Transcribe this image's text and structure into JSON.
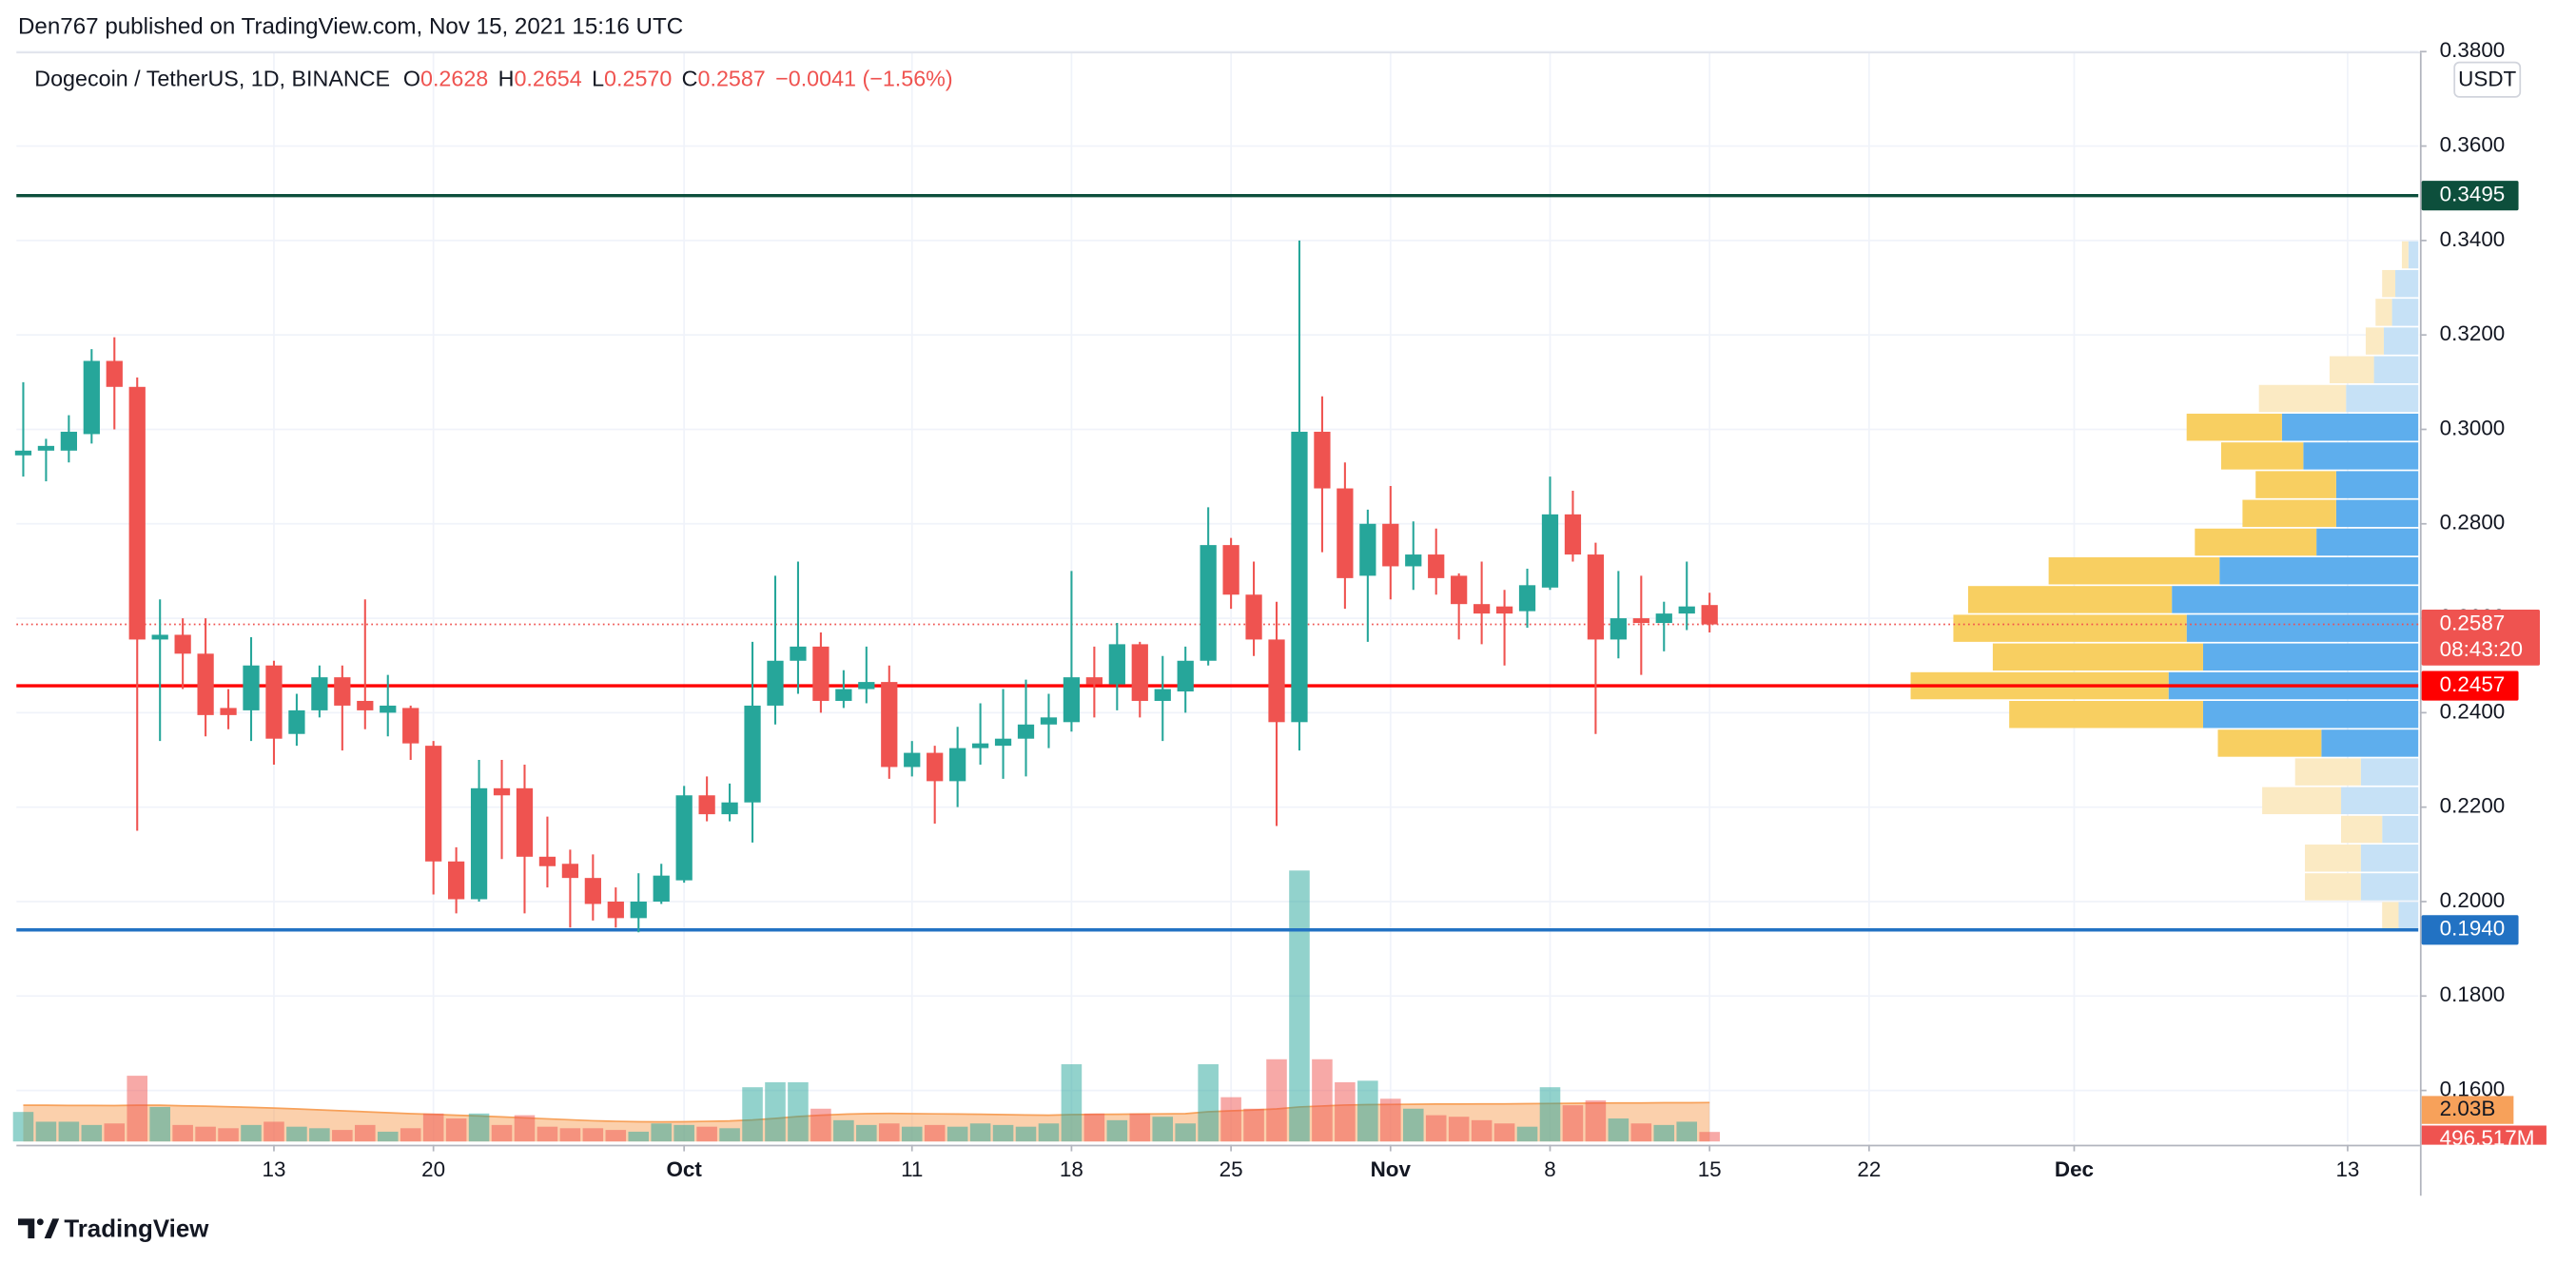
{
  "chart_data": {
    "type": "candlestick",
    "published": "Den767 published on TradingView.com, Nov 15, 2021 15:16 UTC",
    "legend": {
      "symbol": "Dogecoin / TetherUS, 1D, BINANCE",
      "ohlc": [
        {
          "key": "O",
          "value": "0.2628"
        },
        {
          "key": "H",
          "value": "0.2654"
        },
        {
          "key": "L",
          "value": "0.2570"
        },
        {
          "key": "C",
          "value": "0.2587"
        }
      ],
      "change": "−0.0041 (−1.56%)"
    },
    "currency": "USDT",
    "brand": "TradingView",
    "up_color": "#26a69a",
    "down_color": "#ef5350",
    "open": [
      0.2945,
      0.2955,
      0.2955,
      0.299,
      0.3145,
      0.309,
      0.2555,
      0.2565,
      0.2525,
      0.241,
      0.2405,
      0.25,
      0.2355,
      0.2405,
      0.2475,
      0.2425,
      0.24,
      0.241,
      0.233,
      0.2085,
      0.2005,
      0.224,
      0.224,
      0.2095,
      0.208,
      0.205,
      0.2,
      0.1965,
      0.2,
      0.2045,
      0.2225,
      0.2185,
      0.221,
      0.2415,
      0.251,
      0.254,
      0.2425,
      0.245,
      0.2465,
      0.2285,
      0.2315,
      0.2255,
      0.2325,
      0.233,
      0.2345,
      0.2375,
      0.238,
      0.2475,
      0.246,
      0.2545,
      0.2425,
      0.2445,
      0.251,
      0.2755,
      0.265,
      0.2555,
      0.238,
      0.2995,
      0.2875,
      0.269,
      0.28,
      0.271,
      0.2735,
      0.269,
      0.263,
      0.2625,
      0.2615,
      0.2665,
      0.282,
      0.2735,
      0.2555,
      0.26,
      0.259,
      0.261,
      0.2628
    ],
    "high": [
      0.31,
      0.298,
      0.303,
      0.317,
      0.3195,
      0.311,
      0.264,
      0.26,
      0.26,
      0.245,
      0.256,
      0.251,
      0.244,
      0.25,
      0.25,
      0.264,
      0.248,
      0.2415,
      0.234,
      0.2115,
      0.23,
      0.23,
      0.229,
      0.218,
      0.211,
      0.21,
      0.203,
      0.206,
      0.208,
      0.2245,
      0.2265,
      0.225,
      0.255,
      0.269,
      0.272,
      0.257,
      0.249,
      0.254,
      0.25,
      0.234,
      0.233,
      0.237,
      0.242,
      0.245,
      0.247,
      0.244,
      0.27,
      0.254,
      0.259,
      0.255,
      0.252,
      0.254,
      0.2835,
      0.277,
      0.272,
      0.2635,
      0.34,
      0.307,
      0.293,
      0.283,
      0.288,
      0.2805,
      0.279,
      0.2695,
      0.272,
      0.266,
      0.2705,
      0.29,
      0.287,
      0.276,
      0.27,
      0.269,
      0.2635,
      0.272,
      0.2654
    ],
    "low": [
      0.29,
      0.289,
      0.293,
      0.297,
      0.3,
      0.215,
      0.234,
      0.245,
      0.235,
      0.2365,
      0.234,
      0.229,
      0.233,
      0.239,
      0.232,
      0.2365,
      0.235,
      0.23,
      0.2015,
      0.1975,
      0.2,
      0.209,
      0.1975,
      0.203,
      0.1945,
      0.196,
      0.1945,
      0.1935,
      0.1995,
      0.204,
      0.217,
      0.217,
      0.2125,
      0.2375,
      0.244,
      0.24,
      0.241,
      0.242,
      0.226,
      0.2265,
      0.2165,
      0.22,
      0.229,
      0.226,
      0.2265,
      0.2325,
      0.236,
      0.239,
      0.2405,
      0.239,
      0.234,
      0.24,
      0.25,
      0.262,
      0.252,
      0.216,
      0.232,
      0.274,
      0.262,
      0.255,
      0.264,
      0.266,
      0.265,
      0.2555,
      0.2545,
      0.25,
      0.258,
      0.266,
      0.272,
      0.2355,
      0.2515,
      0.248,
      0.253,
      0.2575,
      0.257
    ],
    "close": [
      0.2955,
      0.2965,
      0.2995,
      0.3145,
      0.309,
      0.2555,
      0.2565,
      0.2525,
      0.2395,
      0.2395,
      0.25,
      0.2345,
      0.2405,
      0.2475,
      0.2415,
      0.2405,
      0.2415,
      0.2335,
      0.2085,
      0.2005,
      0.224,
      0.2225,
      0.2095,
      0.2075,
      0.205,
      0.1995,
      0.1965,
      0.2,
      0.2055,
      0.2225,
      0.2185,
      0.221,
      0.2415,
      0.251,
      0.254,
      0.2425,
      0.245,
      0.2465,
      0.2285,
      0.2315,
      0.2255,
      0.2325,
      0.2335,
      0.2345,
      0.2375,
      0.239,
      0.2475,
      0.246,
      0.2545,
      0.2425,
      0.245,
      0.251,
      0.2755,
      0.265,
      0.2555,
      0.238,
      0.2995,
      0.2875,
      0.2685,
      0.28,
      0.271,
      0.2735,
      0.2685,
      0.263,
      0.261,
      0.261,
      0.267,
      0.282,
      0.2735,
      0.2555,
      0.26,
      0.259,
      0.261,
      0.2625,
      0.2587
    ],
    "volume": {
      "values": [
        1540000000,
        1030000000,
        1030000000,
        860000000,
        940000000,
        3430000000,
        1800000000,
        860000000,
        770000000,
        690000000,
        860000000,
        1030000000,
        770000000,
        690000000,
        600000000,
        860000000,
        510000000,
        690000000,
        1460000000,
        1200000000,
        1460000000,
        860000000,
        1370000000,
        770000000,
        690000000,
        690000000,
        600000000,
        510000000,
        940000000,
        860000000,
        770000000,
        690000000,
        2830000000,
        3090000000,
        3090000000,
        1710000000,
        1110000000,
        860000000,
        940000000,
        770000000,
        860000000,
        770000000,
        940000000,
        860000000,
        770000000,
        940000000,
        4030000000,
        1460000000,
        1110000000,
        1460000000,
        1290000000,
        940000000,
        4030000000,
        2310000000,
        1710000000,
        4290000000,
        14140000000,
        4290000000,
        3090000000,
        3170000000,
        2230000000,
        1710000000,
        1370000000,
        1290000000,
        1110000000,
        940000000,
        770000000,
        2830000000,
        1890000000,
        2140000000,
        1200000000,
        940000000,
        860000000,
        1030000000,
        496517000
      ],
      "label": "496.517M",
      "ylim": [
        0,
        14400000000
      ],
      "up_color": "#26a69a",
      "down_color": "#ef5350",
      "ma": {
        "values": [
          1890000000,
          1890000000,
          1880000000,
          1880000000,
          1870000000,
          1890000000,
          1890000000,
          1860000000,
          1840000000,
          1810000000,
          1780000000,
          1740000000,
          1700000000,
          1650000000,
          1600000000,
          1550000000,
          1500000000,
          1450000000,
          1410000000,
          1370000000,
          1330000000,
          1280000000,
          1230000000,
          1180000000,
          1130000000,
          1080000000,
          1050000000,
          1030000000,
          1020000000,
          1030000000,
          1050000000,
          1070000000,
          1120000000,
          1200000000,
          1300000000,
          1370000000,
          1420000000,
          1450000000,
          1460000000,
          1450000000,
          1440000000,
          1430000000,
          1420000000,
          1400000000,
          1380000000,
          1370000000,
          1400000000,
          1410000000,
          1420000000,
          1430000000,
          1440000000,
          1450000000,
          1550000000,
          1600000000,
          1640000000,
          1700000000,
          1800000000,
          1850000000,
          1900000000,
          1920000000,
          1930000000,
          1940000000,
          1950000000,
          1950000000,
          1960000000,
          1960000000,
          1970000000,
          1980000000,
          1990000000,
          2000000000,
          2010000000,
          2010000000,
          2020000000,
          2020000000,
          2030000000
        ],
        "label": "2.03B",
        "color": "#f7a15a"
      }
    },
    "volume_profile": {
      "price_range": [
        0.194,
        0.34
      ],
      "up": [
        12,
        35,
        35,
        22,
        47,
        35,
        59,
        131,
        152,
        131,
        141,
        150,
        121,
        62,
        50,
        50,
        70,
        83,
        44,
        27,
        21,
        16,
        14,
        6
      ],
      "down": [
        10,
        34,
        34,
        25,
        48,
        40,
        63,
        118,
        157,
        128,
        142,
        124,
        104,
        74,
        57,
        49,
        50,
        58,
        53,
        27,
        11,
        10,
        8,
        4
      ],
      "value_area_rows": [
        6,
        17
      ],
      "up_color": "#5eaeed",
      "down_color": "#f8cf61",
      "up_color_outer": "#c6e1f6",
      "down_color_outer": "#fbeac3"
    },
    "xlim": [
      -0.3,
      105.1
    ],
    "xticks": [
      {
        "value": 11,
        "label": "13"
      },
      {
        "value": 18,
        "label": "20"
      },
      {
        "value": 29,
        "label": "Oct"
      },
      {
        "value": 39,
        "label": "11"
      },
      {
        "value": 46,
        "label": "18"
      },
      {
        "value": 53,
        "label": "25"
      },
      {
        "value": 60,
        "label": "Nov"
      },
      {
        "value": 67,
        "label": "8"
      },
      {
        "value": 74,
        "label": "15"
      },
      {
        "value": 81,
        "label": "22"
      },
      {
        "value": 90,
        "label": "Dec"
      },
      {
        "value": 102,
        "label": "13"
      }
    ],
    "ylim": [
      0.1492,
      0.3798
    ],
    "yticks": [
      {
        "value": 0.16,
        "label": "0.1600"
      },
      {
        "value": 0.18,
        "label": "0.1800"
      },
      {
        "value": 0.2,
        "label": "0.2000"
      },
      {
        "value": 0.22,
        "label": "0.2200"
      },
      {
        "value": 0.24,
        "label": "0.2400"
      },
      {
        "value": 0.26,
        "label": "0.2600"
      },
      {
        "value": 0.28,
        "label": "0.2800"
      },
      {
        "value": 0.3,
        "label": "0.3000"
      },
      {
        "value": 0.32,
        "label": "0.3200"
      },
      {
        "value": 0.34,
        "label": "0.3400"
      },
      {
        "value": 0.36,
        "label": "0.3600"
      },
      {
        "value": 0.38,
        "label": "0.3800"
      }
    ],
    "grid": true,
    "hlines": [
      {
        "value": 0.3495,
        "label": "0.3495",
        "color": "#0d4f3c"
      },
      {
        "value": 0.2457,
        "label": "0.2457",
        "color": "#ff0000"
      },
      {
        "value": 0.194,
        "label": "0.1940",
        "color": "#2272c3"
      }
    ],
    "last_price": {
      "value": 0.2587,
      "label": "0.2587",
      "countdown": "08:43:20",
      "color": "#ef5350"
    }
  }
}
